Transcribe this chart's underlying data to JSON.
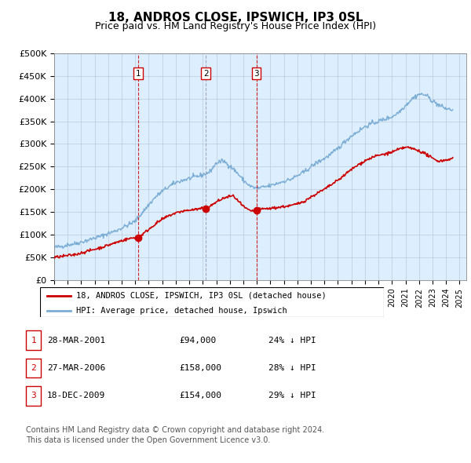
{
  "title": "18, ANDROS CLOSE, IPSWICH, IP3 0SL",
  "subtitle": "Price paid vs. HM Land Registry's House Price Index (HPI)",
  "title_fontsize": 11,
  "subtitle_fontsize": 9,
  "ylabel_ticks": [
    "£0",
    "£50K",
    "£100K",
    "£150K",
    "£200K",
    "£250K",
    "£300K",
    "£350K",
    "£400K",
    "£450K",
    "£500K"
  ],
  "ytick_values": [
    0,
    50000,
    100000,
    150000,
    200000,
    250000,
    300000,
    350000,
    400000,
    450000,
    500000
  ],
  "ylim": [
    0,
    500000
  ],
  "xlim_start": 1995.0,
  "xlim_end": 2025.5,
  "sale_points": [
    {
      "label": "1",
      "date": "28-MAR-2001",
      "price": 94000,
      "year": 2001.23,
      "pct": "24%",
      "direction": "↓"
    },
    {
      "label": "2",
      "date": "27-MAR-2006",
      "price": 158000,
      "year": 2006.23,
      "pct": "28%",
      "direction": "↓"
    },
    {
      "label": "3",
      "date": "18-DEC-2009",
      "price": 154000,
      "year": 2009.96,
      "pct": "29%",
      "direction": "↓"
    }
  ],
  "legend_property": "18, ANDROS CLOSE, IPSWICH, IP3 0SL (detached house)",
  "legend_hpi": "HPI: Average price, detached house, Ipswich",
  "red_color": "#cc0000",
  "blue_color": "#7aadd4",
  "dashed_color_1": "#cc0000",
  "dashed_color_2": "#aabbcc",
  "dashed_color_3": "#cc0000",
  "bg_chart": "#ddeeff",
  "footnote1": "Contains HM Land Registry data © Crown copyright and database right 2024.",
  "footnote2": "This data is licensed under the Open Government Licence v3.0.",
  "background_color": "#ffffff",
  "grid_color": "#aabbcc",
  "blue_key_x": [
    1995,
    1995.5,
    1996,
    1996.5,
    1997,
    1997.5,
    1998,
    1998.5,
    1999,
    1999.5,
    2000,
    2000.5,
    2001,
    2001.5,
    2002,
    2002.5,
    2003,
    2003.5,
    2004,
    2004.5,
    2005,
    2005.5,
    2006,
    2006.5,
    2007,
    2007.5,
    2008,
    2008.5,
    2009,
    2009.5,
    2010,
    2010.5,
    2011,
    2011.5,
    2012,
    2012.5,
    2013,
    2013.5,
    2014,
    2014.5,
    2015,
    2015.5,
    2016,
    2016.5,
    2017,
    2017.5,
    2018,
    2018.5,
    2019,
    2019.5,
    2020,
    2020.5,
    2021,
    2021.5,
    2022,
    2022.5,
    2023,
    2023.5,
    2024,
    2024.5
  ],
  "blue_key_y": [
    72000,
    74000,
    78000,
    80000,
    84000,
    88000,
    93000,
    97000,
    103000,
    108000,
    115000,
    122000,
    130000,
    148000,
    166000,
    183000,
    196000,
    206000,
    215000,
    220000,
    224000,
    228000,
    232000,
    238000,
    258000,
    263000,
    252000,
    238000,
    220000,
    207000,
    202000,
    205000,
    208000,
    213000,
    218000,
    222000,
    230000,
    238000,
    250000,
    260000,
    268000,
    278000,
    290000,
    305000,
    318000,
    328000,
    338000,
    345000,
    350000,
    355000,
    360000,
    370000,
    385000,
    400000,
    410000,
    408000,
    395000,
    385000,
    378000,
    375000
  ],
  "red_key_x": [
    1995,
    1995.5,
    1996,
    1996.5,
    1997,
    1997.5,
    1998,
    1998.5,
    1999,
    1999.5,
    2000,
    2000.5,
    2001,
    2001.23,
    2001.5,
    2002,
    2002.5,
    2003,
    2003.5,
    2004,
    2004.5,
    2005,
    2005.5,
    2006,
    2006.23,
    2006.5,
    2007,
    2007.5,
    2008,
    2008.3,
    2008.5,
    2009,
    2009.5,
    2009.96,
    2010,
    2010.5,
    2011,
    2011.5,
    2012,
    2012.5,
    2013,
    2013.5,
    2014,
    2014.5,
    2015,
    2015.5,
    2016,
    2016.5,
    2017,
    2017.5,
    2018,
    2018.5,
    2019,
    2019.5,
    2020,
    2020.5,
    2021,
    2021.5,
    2022,
    2022.5,
    2023,
    2023.5,
    2024,
    2024.5
  ],
  "red_key_y": [
    50000,
    52000,
    54000,
    56000,
    60000,
    64000,
    68000,
    72000,
    77000,
    82000,
    87000,
    91000,
    94000,
    94000,
    100000,
    112000,
    124000,
    134000,
    142000,
    148000,
    152000,
    154000,
    156000,
    158000,
    158000,
    162000,
    172000,
    180000,
    185000,
    185000,
    178000,
    162000,
    152000,
    154000,
    155000,
    157000,
    158000,
    160000,
    162000,
    164000,
    168000,
    174000,
    183000,
    192000,
    200000,
    210000,
    220000,
    232000,
    244000,
    254000,
    263000,
    270000,
    275000,
    278000,
    282000,
    288000,
    293000,
    290000,
    285000,
    278000,
    268000,
    262000,
    265000,
    268000
  ]
}
